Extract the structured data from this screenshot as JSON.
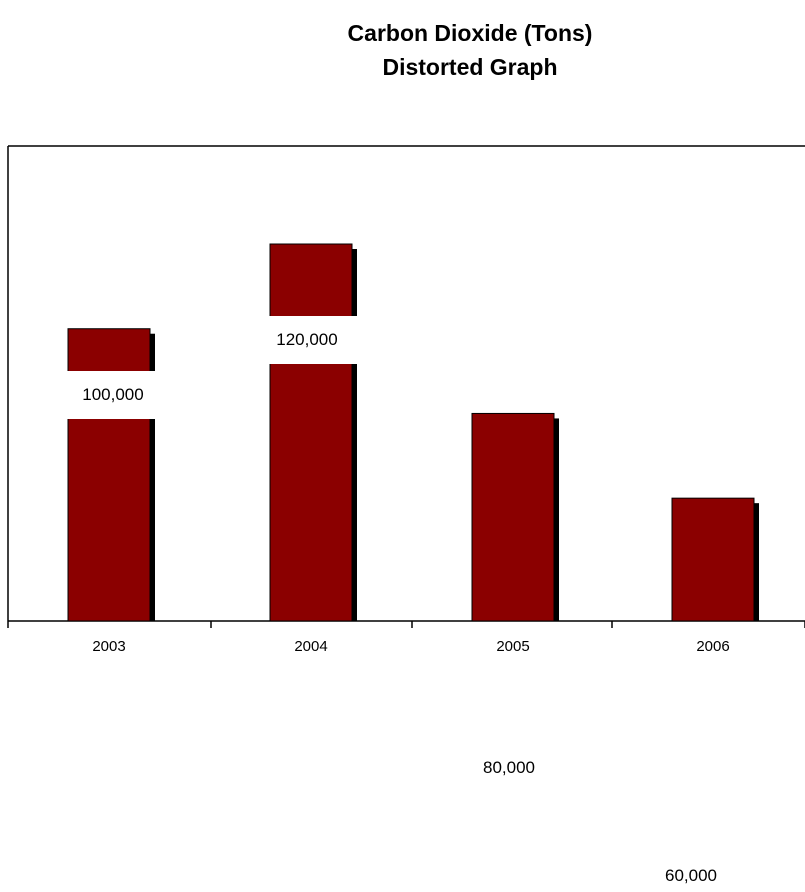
{
  "chart_data": {
    "type": "bar",
    "title": "Carbon Dioxide (Tons)",
    "subtitle": "Distorted Graph",
    "categories": [
      "2003",
      "2004",
      "2005",
      "2006"
    ],
    "values": [
      100000,
      120000,
      80000,
      60000
    ],
    "value_labels": [
      "100,000",
      "120,000",
      "80,000",
      "60,000"
    ],
    "colors": {
      "bar": "#8b0000",
      "shadow": "#000000"
    },
    "grid": false,
    "legend": "none"
  }
}
